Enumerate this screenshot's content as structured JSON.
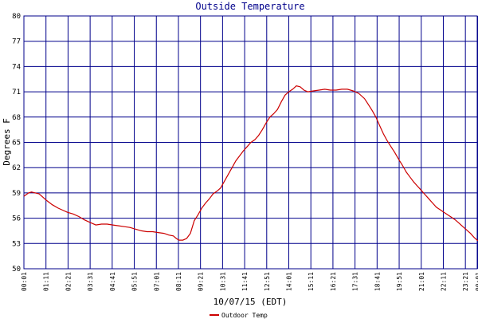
{
  "chart_data": {
    "type": "line",
    "title": "Outside Temperature",
    "xlabel": "10/07/15 (EDT)",
    "ylabel": "Degrees F",
    "ylim": [
      50,
      80
    ],
    "yticks": [
      50,
      53,
      56,
      59,
      62,
      65,
      68,
      71,
      74,
      77,
      80
    ],
    "xticks": [
      "00:01",
      "01:11",
      "02:21",
      "03:31",
      "04:41",
      "05:51",
      "07:01",
      "08:11",
      "09:21",
      "10:31",
      "11:41",
      "12:51",
      "14:01",
      "15:11",
      "16:21",
      "17:31",
      "18:41",
      "19:51",
      "21:01",
      "22:11",
      "23:21",
      "00:01"
    ],
    "grid": true,
    "legend_position": "bottom",
    "colors": {
      "line": "#cc0000",
      "grid": "#00008b",
      "title": "#00008b",
      "axis": "#00008b"
    },
    "series": [
      {
        "name": "Outdoor Temp",
        "x": [
          0.0,
          0.12,
          0.25,
          0.4,
          0.6,
          0.8,
          1.0,
          1.2,
          1.5,
          1.8,
          2.0,
          2.3,
          2.6,
          2.9,
          3.2,
          3.5,
          3.8,
          4.1,
          4.4,
          4.7,
          5.0,
          5.3,
          5.6,
          5.9,
          6.2,
          6.5,
          6.8,
          7.1,
          7.4,
          7.65,
          7.9,
          8.05,
          8.2,
          8.4,
          8.6,
          8.8,
          9.0,
          9.2,
          9.4,
          9.6,
          9.8,
          10.0,
          10.2,
          10.4,
          10.6,
          10.8,
          11.0,
          11.2,
          11.4,
          11.6,
          11.8,
          12.0,
          12.2,
          12.4,
          12.6,
          12.8,
          13.0,
          13.2,
          13.4,
          13.6,
          13.8,
          14.0,
          14.2,
          14.4,
          14.6,
          14.8,
          15.0,
          15.3,
          15.6,
          15.9,
          16.2,
          16.5,
          16.8,
          17.1,
          17.4,
          17.7,
          18.0,
          18.2,
          18.4,
          18.6,
          18.8,
          19.0,
          19.2,
          19.4,
          19.6,
          19.8,
          20.0,
          20.2,
          20.4,
          20.6,
          20.8,
          21.0,
          21.2,
          21.4,
          21.6,
          21.8,
          22.0,
          22.2,
          22.4,
          22.6,
          22.8,
          23.0,
          23.2,
          23.4,
          23.6,
          23.8,
          24.0
        ],
        "values": [
          58.6,
          58.8,
          59.0,
          59.1,
          59.0,
          58.9,
          58.5,
          58.1,
          57.6,
          57.2,
          57.0,
          56.7,
          56.5,
          56.2,
          55.8,
          55.5,
          55.2,
          55.3,
          55.3,
          55.2,
          55.1,
          55.0,
          54.9,
          54.7,
          54.5,
          54.4,
          54.4,
          54.3,
          54.2,
          54.0,
          53.9,
          53.6,
          53.4,
          53.4,
          53.6,
          54.2,
          55.7,
          56.4,
          57.2,
          57.8,
          58.3,
          58.9,
          59.2,
          59.6,
          60.4,
          61.2,
          62.0,
          62.8,
          63.4,
          64.0,
          64.5,
          65.0,
          65.3,
          65.8,
          66.5,
          67.3,
          68.0,
          68.4,
          68.9,
          69.8,
          70.6,
          71.0,
          71.3,
          71.7,
          71.6,
          71.2,
          71.0,
          71.1,
          71.2,
          71.3,
          71.2,
          71.2,
          71.3,
          71.3,
          71.1,
          70.8,
          70.2,
          69.5,
          68.8,
          68.0,
          67.0,
          66.0,
          65.2,
          64.5,
          63.8,
          63.0,
          62.3,
          61.5,
          60.9,
          60.3,
          59.8,
          59.3,
          58.8,
          58.3,
          57.8,
          57.3,
          57.0,
          56.7,
          56.4,
          56.1,
          55.8,
          55.4,
          55.0,
          54.6,
          54.2,
          53.7,
          53.3
        ]
      }
    ]
  }
}
